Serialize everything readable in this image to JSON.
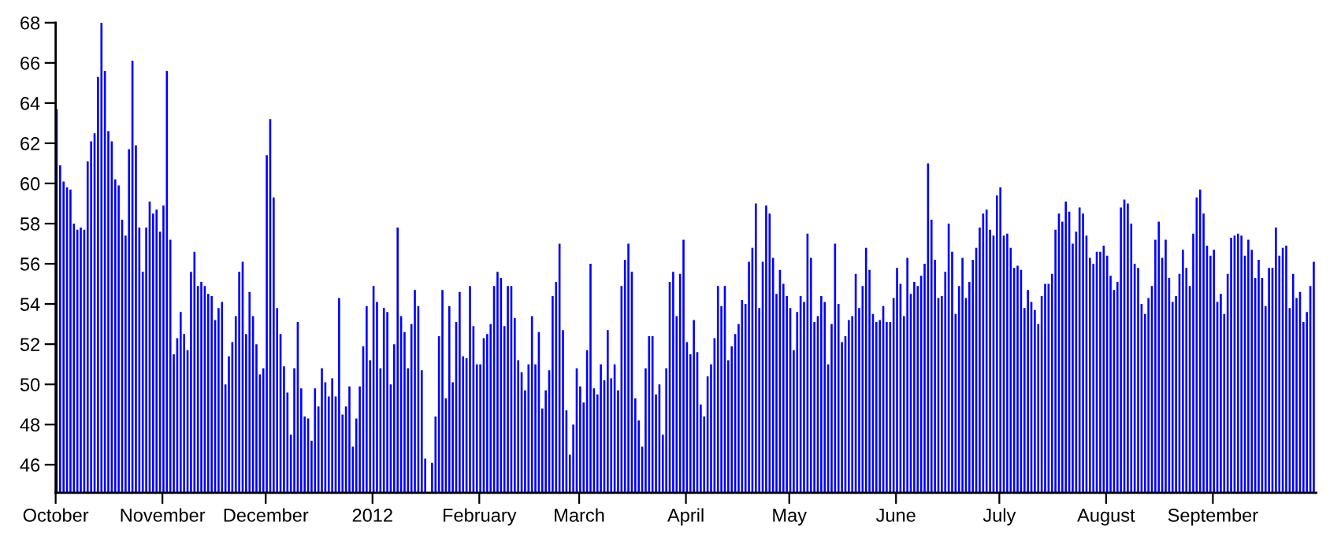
{
  "chart_data": {
    "type": "bar",
    "x": [
      "2011-10-01",
      "2011-10-02",
      "2011-10-03",
      "2011-10-04",
      "2011-10-05",
      "2011-10-06",
      "2011-10-07",
      "2011-10-08",
      "2011-10-09",
      "2011-10-10",
      "2011-10-11",
      "2011-10-12",
      "2011-10-13",
      "2011-10-14",
      "2011-10-15",
      "2011-10-16",
      "2011-10-17",
      "2011-10-18",
      "2011-10-19",
      "2011-10-20",
      "2011-10-21",
      "2011-10-22",
      "2011-10-23",
      "2011-10-24",
      "2011-10-25",
      "2011-10-26",
      "2011-10-27",
      "2011-10-28",
      "2011-10-29",
      "2011-10-30",
      "2011-10-31",
      "2011-11-01",
      "2011-11-02",
      "2011-11-03",
      "2011-11-04",
      "2011-11-05",
      "2011-11-06",
      "2011-11-07",
      "2011-11-08",
      "2011-11-09",
      "2011-11-10",
      "2011-11-11",
      "2011-11-12",
      "2011-11-13",
      "2011-11-14",
      "2011-11-15",
      "2011-11-16",
      "2011-11-17",
      "2011-11-18",
      "2011-11-19",
      "2011-11-20",
      "2011-11-21",
      "2011-11-22",
      "2011-11-23",
      "2011-11-24",
      "2011-11-25",
      "2011-11-26",
      "2011-11-27",
      "2011-11-28",
      "2011-11-29",
      "2011-11-30",
      "2011-12-01",
      "2011-12-02",
      "2011-12-03",
      "2011-12-04",
      "2011-12-05",
      "2011-12-06",
      "2011-12-07",
      "2011-12-08",
      "2011-12-09",
      "2011-12-10",
      "2011-12-11",
      "2011-12-12",
      "2011-12-13",
      "2011-12-14",
      "2011-12-15",
      "2011-12-16",
      "2011-12-17",
      "2011-12-18",
      "2011-12-19",
      "2011-12-20",
      "2011-12-21",
      "2011-12-22",
      "2011-12-23",
      "2011-12-24",
      "2011-12-25",
      "2011-12-26",
      "2011-12-27",
      "2011-12-28",
      "2011-12-29",
      "2011-12-30",
      "2011-12-31",
      "2012-01-01",
      "2012-01-02",
      "2012-01-03",
      "2012-01-04",
      "2012-01-05",
      "2012-01-06",
      "2012-01-07",
      "2012-01-08",
      "2012-01-09",
      "2012-01-10",
      "2012-01-11",
      "2012-01-12",
      "2012-01-13",
      "2012-01-14",
      "2012-01-15",
      "2012-01-16",
      "2012-01-17",
      "2012-01-18",
      "2012-01-19",
      "2012-01-20",
      "2012-01-21",
      "2012-01-22",
      "2012-01-23",
      "2012-01-24",
      "2012-01-25",
      "2012-01-26",
      "2012-01-27",
      "2012-01-28",
      "2012-01-29",
      "2012-01-30",
      "2012-01-31",
      "2012-02-01",
      "2012-02-02",
      "2012-02-03",
      "2012-02-04",
      "2012-02-05",
      "2012-02-06",
      "2012-02-07",
      "2012-02-08",
      "2012-02-09",
      "2012-02-10",
      "2012-02-11",
      "2012-02-12",
      "2012-02-13",
      "2012-02-14",
      "2012-02-15",
      "2012-02-16",
      "2012-02-17",
      "2012-02-18",
      "2012-02-19",
      "2012-02-20",
      "2012-02-21",
      "2012-02-22",
      "2012-02-23",
      "2012-02-24",
      "2012-02-25",
      "2012-02-26",
      "2012-02-27",
      "2012-02-28",
      "2012-02-29",
      "2012-03-01",
      "2012-03-02",
      "2012-03-03",
      "2012-03-04",
      "2012-03-05",
      "2012-03-06",
      "2012-03-07",
      "2012-03-08",
      "2012-03-09",
      "2012-03-10",
      "2012-03-11",
      "2012-03-12",
      "2012-03-13",
      "2012-03-14",
      "2012-03-15",
      "2012-03-16",
      "2012-03-17",
      "2012-03-18",
      "2012-03-19",
      "2012-03-20",
      "2012-03-21",
      "2012-03-22",
      "2012-03-23",
      "2012-03-24",
      "2012-03-25",
      "2012-03-26",
      "2012-03-27",
      "2012-03-28",
      "2012-03-29",
      "2012-03-30",
      "2012-03-31",
      "2012-04-01",
      "2012-04-02",
      "2012-04-03",
      "2012-04-04",
      "2012-04-05",
      "2012-04-06",
      "2012-04-07",
      "2012-04-08",
      "2012-04-09",
      "2012-04-10",
      "2012-04-11",
      "2012-04-12",
      "2012-04-13",
      "2012-04-14",
      "2012-04-15",
      "2012-04-16",
      "2012-04-17",
      "2012-04-18",
      "2012-04-19",
      "2012-04-20",
      "2012-04-21",
      "2012-04-22",
      "2012-04-23",
      "2012-04-24",
      "2012-04-25",
      "2012-04-26",
      "2012-04-27",
      "2012-04-28",
      "2012-04-29",
      "2012-04-30",
      "2012-05-01",
      "2012-05-02",
      "2012-05-03",
      "2012-05-04",
      "2012-05-05",
      "2012-05-06",
      "2012-05-07",
      "2012-05-08",
      "2012-05-09",
      "2012-05-10",
      "2012-05-11",
      "2012-05-12",
      "2012-05-13",
      "2012-05-14",
      "2012-05-15",
      "2012-05-16",
      "2012-05-17",
      "2012-05-18",
      "2012-05-19",
      "2012-05-20",
      "2012-05-21",
      "2012-05-22",
      "2012-05-23",
      "2012-05-24",
      "2012-05-25",
      "2012-05-26",
      "2012-05-27",
      "2012-05-28",
      "2012-05-29",
      "2012-05-30",
      "2012-05-31",
      "2012-06-01",
      "2012-06-02",
      "2012-06-03",
      "2012-06-04",
      "2012-06-05",
      "2012-06-06",
      "2012-06-07",
      "2012-06-08",
      "2012-06-09",
      "2012-06-10",
      "2012-06-11",
      "2012-06-12",
      "2012-06-13",
      "2012-06-14",
      "2012-06-15",
      "2012-06-16",
      "2012-06-17",
      "2012-06-18",
      "2012-06-19",
      "2012-06-20",
      "2012-06-21",
      "2012-06-22",
      "2012-06-23",
      "2012-06-24",
      "2012-06-25",
      "2012-06-26",
      "2012-06-27",
      "2012-06-28",
      "2012-06-29",
      "2012-06-30",
      "2012-07-01",
      "2012-07-02",
      "2012-07-03",
      "2012-07-04",
      "2012-07-05",
      "2012-07-06",
      "2012-07-07",
      "2012-07-08",
      "2012-07-09",
      "2012-07-10",
      "2012-07-11",
      "2012-07-12",
      "2012-07-13",
      "2012-07-14",
      "2012-07-15",
      "2012-07-16",
      "2012-07-17",
      "2012-07-18",
      "2012-07-19",
      "2012-07-20",
      "2012-07-21",
      "2012-07-22",
      "2012-07-23",
      "2012-07-24",
      "2012-07-25",
      "2012-07-26",
      "2012-07-27",
      "2012-07-28",
      "2012-07-29",
      "2012-07-30",
      "2012-07-31",
      "2012-08-01",
      "2012-08-02",
      "2012-08-03",
      "2012-08-04",
      "2012-08-05",
      "2012-08-06",
      "2012-08-07",
      "2012-08-08",
      "2012-08-09",
      "2012-08-10",
      "2012-08-11",
      "2012-08-12",
      "2012-08-13",
      "2012-08-14",
      "2012-08-15",
      "2012-08-16",
      "2012-08-17",
      "2012-08-18",
      "2012-08-19",
      "2012-08-20",
      "2012-08-21",
      "2012-08-22",
      "2012-08-23",
      "2012-08-24",
      "2012-08-25",
      "2012-08-26",
      "2012-08-27",
      "2012-08-28",
      "2012-08-29",
      "2012-08-30",
      "2012-08-31",
      "2012-09-01",
      "2012-09-02",
      "2012-09-03",
      "2012-09-04",
      "2012-09-05",
      "2012-09-06",
      "2012-09-07",
      "2012-09-08",
      "2012-09-09",
      "2012-09-10",
      "2012-09-11",
      "2012-09-12",
      "2012-09-13",
      "2012-09-14",
      "2012-09-15",
      "2012-09-16",
      "2012-09-17",
      "2012-09-18",
      "2012-09-19",
      "2012-09-20",
      "2012-09-21",
      "2012-09-22",
      "2012-09-23",
      "2012-09-24",
      "2012-09-25",
      "2012-09-26",
      "2012-09-27",
      "2012-09-28",
      "2012-09-29",
      "2012-09-30"
    ],
    "series": [
      {
        "color": "#0000ff",
        "values": [
          63.7,
          60.9,
          60.1,
          59.8,
          59.7,
          58.0,
          57.7,
          57.8,
          57.7,
          61.1,
          62.1,
          62.5,
          65.3,
          68.0,
          65.6,
          62.6,
          62.1,
          60.2,
          59.9,
          58.2,
          57.4,
          61.7,
          66.1,
          61.9,
          57.8,
          55.6,
          57.8,
          59.1,
          58.5,
          58.7,
          57.6,
          58.9,
          65.6,
          57.2,
          51.5,
          52.3,
          53.6,
          52.5,
          51.7,
          55.6,
          56.6,
          54.9,
          55.1,
          54.9,
          54.5,
          54.4,
          53.2,
          53.8,
          54.1,
          50.0,
          51.4,
          52.1,
          53.4,
          55.6,
          56.1,
          52.5,
          54.6,
          53.4,
          52.0,
          50.5,
          50.8,
          61.4,
          63.2,
          59.3,
          53.8,
          52.5,
          50.9,
          49.6,
          47.5,
          50.8,
          53.1,
          49.8,
          48.4,
          48.3,
          47.2,
          49.8,
          48.9,
          50.8,
          50.1,
          49.4,
          50.3,
          49.4,
          54.3,
          48.5,
          48.9,
          49.9,
          46.9,
          48.3,
          49.9,
          51.9,
          53.9,
          51.2,
          54.9,
          54.1,
          50.8,
          53.8,
          53.6,
          50.0,
          52.0,
          57.8,
          53.4,
          52.6,
          50.8,
          53.0,
          54.7,
          53.9,
          50.7,
          46.3,
          null,
          46.1,
          48.4,
          52.4,
          54.7,
          49.3,
          53.9,
          50.1,
          53.1,
          54.6,
          51.4,
          51.3,
          54.9,
          52.9,
          51.0,
          51.0,
          52.3,
          52.5,
          53.0,
          54.9,
          55.6,
          55.3,
          52.9,
          54.9,
          54.9,
          53.3,
          51.2,
          50.6,
          49.7,
          51.0,
          53.4,
          51.0,
          52.6,
          48.8,
          49.7,
          50.7,
          54.4,
          55.1,
          57.0,
          52.7,
          48.7,
          46.5,
          48.0,
          50.8,
          49.9,
          49.1,
          51.7,
          56.0,
          49.8,
          49.5,
          51.0,
          50.2,
          52.7,
          50.3,
          51.0,
          49.7,
          54.9,
          56.2,
          57.0,
          55.6,
          49.3,
          48.2,
          46.9,
          50.8,
          52.4,
          52.4,
          49.5,
          50.0,
          47.5,
          50.8,
          55.1,
          55.6,
          53.4,
          55.5,
          57.2,
          52.1,
          51.5,
          53.2,
          51.6,
          49.0,
          48.4,
          50.4,
          51.0,
          52.3,
          54.9,
          53.9,
          54.9,
          51.2,
          51.9,
          52.5,
          53.0,
          54.2,
          54.0,
          56.1,
          56.8,
          59.0,
          53.8,
          56.1,
          58.9,
          58.5,
          56.3,
          54.5,
          55.7,
          55.0,
          54.4,
          53.8,
          51.7,
          53.6,
          54.4,
          54.1,
          57.5,
          56.3,
          53.1,
          53.4,
          54.4,
          54.1,
          51.0,
          53.0,
          57.0,
          54.0,
          52.1,
          52.4,
          53.2,
          53.4,
          55.5,
          53.8,
          54.9,
          56.8,
          55.7,
          53.5,
          53.1,
          53.2,
          53.9,
          53.1,
          53.1,
          54.3,
          55.8,
          55.0,
          53.4,
          56.3,
          54.5,
          55.1,
          54.9,
          55.4,
          56.0,
          61.0,
          58.2,
          56.2,
          54.3,
          54.4,
          55.6,
          58.0,
          56.6,
          53.5,
          54.9,
          56.3,
          54.3,
          55.1,
          56.2,
          56.8,
          57.8,
          58.5,
          58.7,
          57.7,
          57.4,
          59.4,
          59.8,
          57.4,
          57.5,
          56.8,
          55.8,
          55.9,
          55.7,
          53.8,
          54.7,
          54.1,
          53.7,
          53.0,
          54.4,
          55.0,
          55.0,
          55.5,
          57.7,
          58.5,
          58.1,
          59.1,
          58.6,
          57.0,
          57.6,
          58.8,
          58.5,
          57.4,
          56.3,
          56.0,
          56.6,
          56.6,
          56.9,
          56.4,
          55.4,
          54.7,
          55.1,
          58.8,
          59.2,
          59.0,
          58.0,
          56.0,
          55.8,
          54.0,
          53.5,
          54.3,
          54.9,
          57.2,
          58.1,
          56.3,
          57.2,
          55.3,
          54.1,
          54.4,
          55.5,
          56.7,
          55.8,
          54.9,
          57.5,
          59.3,
          59.7,
          58.5,
          56.9,
          56.4,
          56.7,
          54.1,
          54.5,
          53.5,
          55.5,
          57.3,
          57.4,
          57.5,
          57.4,
          56.4,
          57.2,
          56.7,
          55.3,
          56.2,
          55.3,
          53.9,
          55.8,
          55.8,
          57.8,
          56.4,
          56.8,
          56.9,
          53.8,
          55.5,
          54.3,
          54.6,
          53.1,
          53.6,
          54.9,
          56.1
        ]
      }
    ],
    "xlim": [
      "2011-10-01",
      "2012-10-01"
    ],
    "xticks": [
      {
        "value": "2011-10-01",
        "label": "October"
      },
      {
        "value": "2011-11-01",
        "label": "November"
      },
      {
        "value": "2011-12-01",
        "label": "December"
      },
      {
        "value": "2012-01-01",
        "label": "2012"
      },
      {
        "value": "2012-02-01",
        "label": "February"
      },
      {
        "value": "2012-03-01",
        "label": "March"
      },
      {
        "value": "2012-04-01",
        "label": "April"
      },
      {
        "value": "2012-05-01",
        "label": "May"
      },
      {
        "value": "2012-06-01",
        "label": "June"
      },
      {
        "value": "2012-07-01",
        "label": "July"
      },
      {
        "value": "2012-08-01",
        "label": "August"
      },
      {
        "value": "2012-09-01",
        "label": "September"
      }
    ],
    "ylim": [
      44.6,
      68
    ],
    "yticks": [
      46,
      48,
      50,
      52,
      54,
      56,
      58,
      60,
      62,
      64,
      66,
      68
    ],
    "grid": false
  }
}
